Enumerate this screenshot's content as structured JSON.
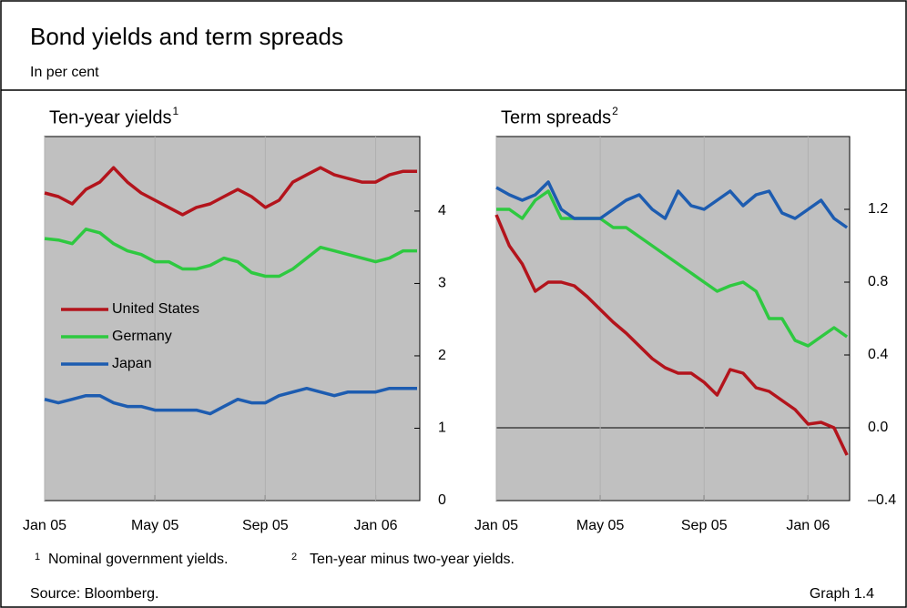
{
  "title": "Bond yields and term spreads",
  "subtitle": "In per cent",
  "chart_data": [
    {
      "type": "line",
      "title": "Ten-year yields",
      "title_note": "1",
      "x": [
        0,
        0.5,
        1,
        1.5,
        2,
        2.5,
        3,
        3.5,
        4,
        4.5,
        5,
        5.5,
        6,
        6.5,
        7,
        7.5,
        8,
        8.5,
        9,
        9.5,
        10,
        10.5,
        11,
        11.5,
        12,
        12.5,
        13,
        13.5
      ],
      "xlim": [
        0,
        13.6
      ],
      "xticks": [
        {
          "value": 0,
          "label": "Jan 05"
        },
        {
          "value": 4,
          "label": "May 05"
        },
        {
          "value": 8,
          "label": "Sep 05"
        },
        {
          "value": 12,
          "label": "Jan 06"
        }
      ],
      "ylim": [
        0,
        5.03
      ],
      "yticks": [
        0,
        1,
        2,
        3,
        4
      ],
      "y_axis_side": "right",
      "grid": false,
      "plot_color": "#c0c0c0",
      "legend": "center-left",
      "series": [
        {
          "name": "United States",
          "color": "#b3141c",
          "values": [
            4.25,
            4.2,
            4.1,
            4.3,
            4.4,
            4.6,
            4.4,
            4.25,
            4.15,
            4.05,
            3.95,
            4.05,
            4.1,
            4.2,
            4.3,
            4.2,
            4.05,
            4.15,
            4.4,
            4.5,
            4.6,
            4.5,
            4.45,
            4.4,
            4.4,
            4.5,
            4.55,
            4.55
          ]
        },
        {
          "name": "Germany",
          "color": "#2ec940",
          "values": [
            3.62,
            3.6,
            3.55,
            3.75,
            3.7,
            3.55,
            3.45,
            3.4,
            3.3,
            3.3,
            3.2,
            3.2,
            3.25,
            3.35,
            3.3,
            3.15,
            3.1,
            3.1,
            3.2,
            3.35,
            3.5,
            3.45,
            3.4,
            3.35,
            3.3,
            3.35,
            3.45,
            3.45
          ]
        },
        {
          "name": "Japan",
          "color": "#1d5cb0",
          "values": [
            1.4,
            1.35,
            1.4,
            1.45,
            1.45,
            1.35,
            1.3,
            1.3,
            1.25,
            1.25,
            1.25,
            1.25,
            1.2,
            1.3,
            1.4,
            1.35,
            1.35,
            1.45,
            1.5,
            1.55,
            1.5,
            1.45,
            1.5,
            1.5,
            1.5,
            1.55,
            1.55,
            1.55
          ]
        }
      ]
    },
    {
      "type": "line",
      "title": "Term spreads",
      "title_note": "2",
      "x": [
        0,
        0.5,
        1,
        1.5,
        2,
        2.5,
        3,
        3.5,
        4,
        4.5,
        5,
        5.5,
        6,
        6.5,
        7,
        7.5,
        8,
        8.5,
        9,
        9.5,
        10,
        10.5,
        11,
        11.5,
        12,
        12.5,
        13,
        13.5
      ],
      "xlim": [
        0,
        13.6
      ],
      "xticks": [
        {
          "value": 0,
          "label": "Jan 05"
        },
        {
          "value": 4,
          "label": "May 05"
        },
        {
          "value": 8,
          "label": "Sep 05"
        },
        {
          "value": 12,
          "label": "Jan 06"
        }
      ],
      "ylim": [
        -0.4,
        1.6
      ],
      "yticks": [
        {
          "value": -0.4,
          "label": "–0.4"
        },
        {
          "value": 0,
          "label": "0.0"
        },
        0.4,
        0.8,
        1.2
      ],
      "y_axis_side": "right",
      "grid": false,
      "plot_color": "#c0c0c0",
      "legend": "none",
      "series": [
        {
          "name": "United States",
          "color": "#b3141c",
          "values": [
            1.17,
            1.0,
            0.9,
            0.75,
            0.8,
            0.8,
            0.78,
            0.72,
            0.65,
            0.58,
            0.52,
            0.45,
            0.38,
            0.33,
            0.3,
            0.3,
            0.25,
            0.18,
            0.32,
            0.3,
            0.22,
            0.2,
            0.15,
            0.1,
            0.02,
            0.03,
            0.0,
            -0.15
          ]
        },
        {
          "name": "Germany",
          "color": "#2ec940",
          "values": [
            1.2,
            1.2,
            1.15,
            1.25,
            1.3,
            1.15,
            1.15,
            1.15,
            1.15,
            1.1,
            1.1,
            1.05,
            1.0,
            0.95,
            0.9,
            0.85,
            0.8,
            0.75,
            0.78,
            0.8,
            0.75,
            0.6,
            0.6,
            0.48,
            0.45,
            0.5,
            0.55,
            0.5
          ]
        },
        {
          "name": "Japan",
          "color": "#1d5cb0",
          "values": [
            1.32,
            1.28,
            1.25,
            1.28,
            1.35,
            1.2,
            1.15,
            1.15,
            1.15,
            1.2,
            1.25,
            1.28,
            1.2,
            1.15,
            1.3,
            1.22,
            1.2,
            1.25,
            1.3,
            1.22,
            1.28,
            1.3,
            1.18,
            1.15,
            1.2,
            1.25,
            1.15,
            1.1
          ]
        }
      ]
    }
  ],
  "footnotes": [
    {
      "mark": "1",
      "text": "Nominal government yields."
    },
    {
      "mark": "2",
      "text": "Ten-year minus two-year yields."
    }
  ],
  "source": "Source: Bloomberg.",
  "graph_label": "Graph 1.4"
}
